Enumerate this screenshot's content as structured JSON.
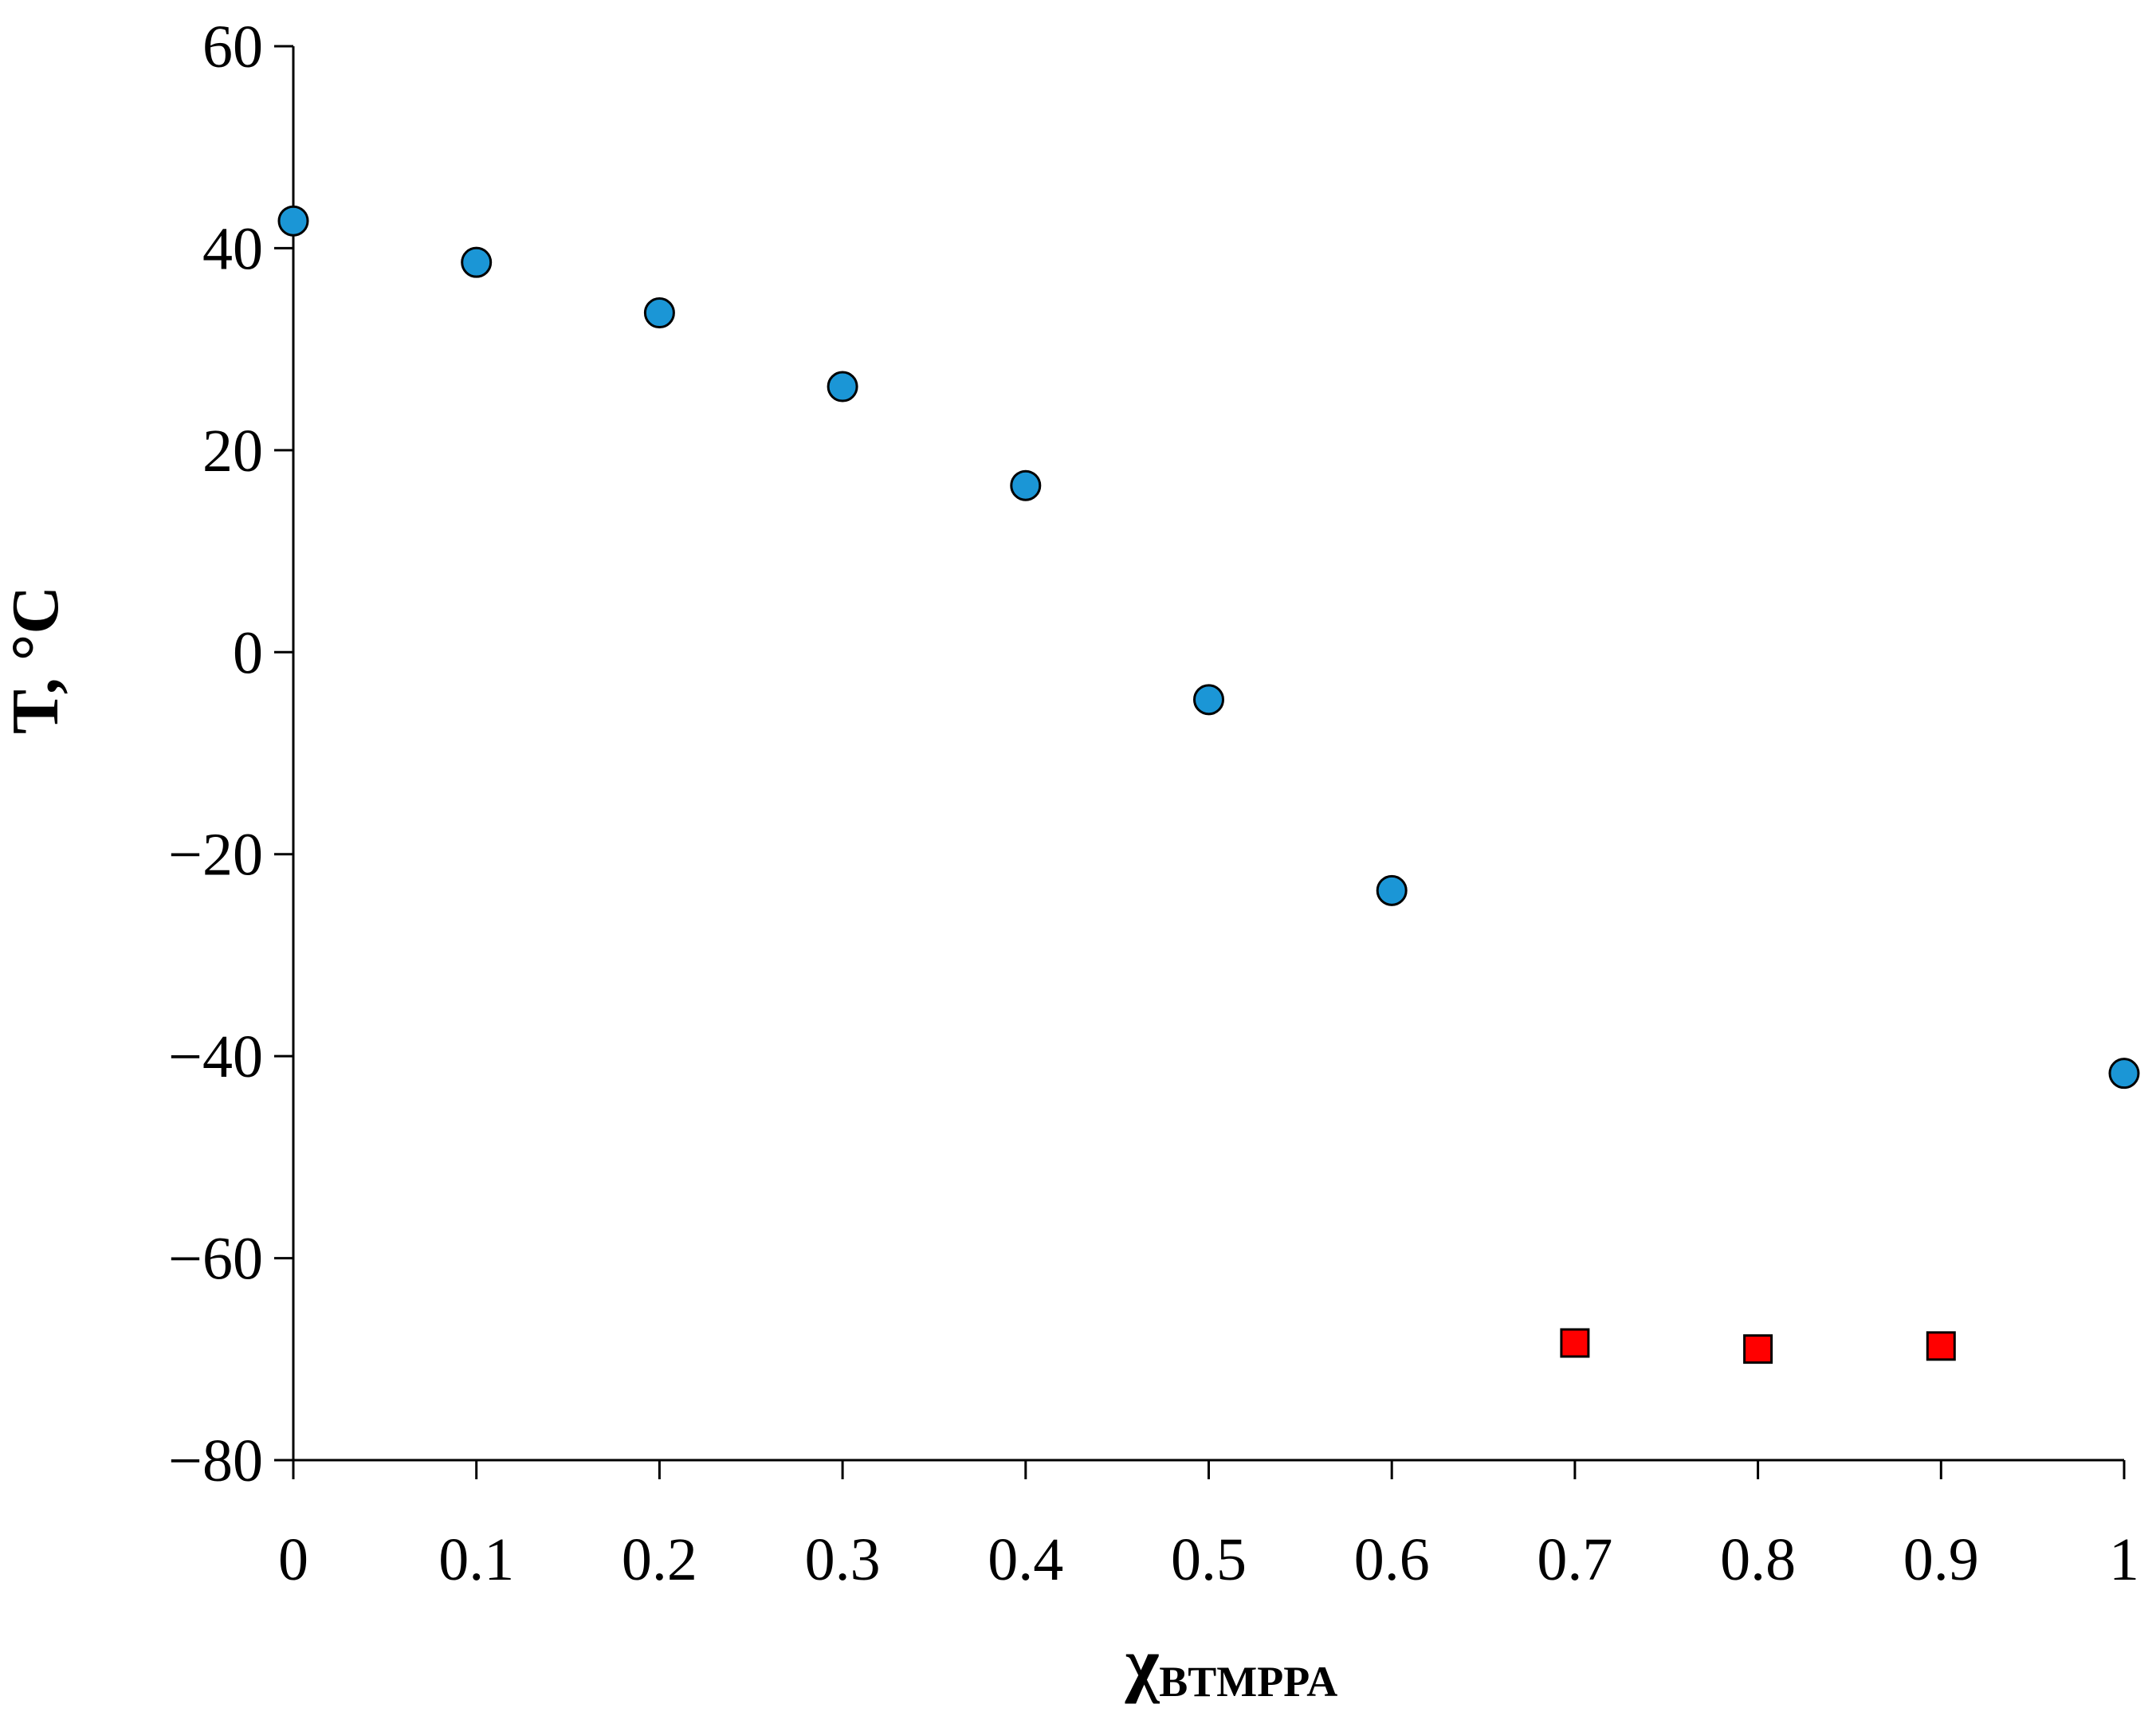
{
  "chart_data": {
    "type": "scatter",
    "title": "",
    "xlabel_main": "χ",
    "xlabel_sub": "BTMPPA",
    "ylabel": "T, °C",
    "xlim": [
      0,
      1
    ],
    "ylim": [
      -80,
      60
    ],
    "x_ticks": [
      0,
      0.1,
      0.2,
      0.3,
      0.4,
      0.5,
      0.6,
      0.7,
      0.8,
      0.9,
      1
    ],
    "x_tick_labels": [
      "0",
      "0.1",
      "0.2",
      "0.3",
      "0.4",
      "0.5",
      "0.6",
      "0.7",
      "0.8",
      "0.9",
      "1"
    ],
    "y_ticks": [
      -80,
      -60,
      -40,
      -20,
      0,
      20,
      40,
      60
    ],
    "y_tick_labels": [
      "−80",
      "−60",
      "−40",
      "−20",
      "0",
      "20",
      "40",
      "60"
    ],
    "grid": false,
    "legend": "none",
    "series": [
      {
        "marker": "circle",
        "color": "#1b96d6",
        "points": [
          {
            "x": 0,
            "y": 42.7
          },
          {
            "x": 0.1,
            "y": 38.6
          },
          {
            "x": 0.2,
            "y": 33.6
          },
          {
            "x": 0.3,
            "y": 26.3
          },
          {
            "x": 0.4,
            "y": 16.5
          },
          {
            "x": 0.5,
            "y": -4.7
          },
          {
            "x": 0.6,
            "y": -23.6
          },
          {
            "x": 1,
            "y": -41.7
          }
        ]
      },
      {
        "marker": "square",
        "color": "#ff0000",
        "points": [
          {
            "x": 0.7,
            "y": -68.4
          },
          {
            "x": 0.8,
            "y": -69.0
          },
          {
            "x": 0.9,
            "y": -68.7
          }
        ]
      }
    ]
  }
}
